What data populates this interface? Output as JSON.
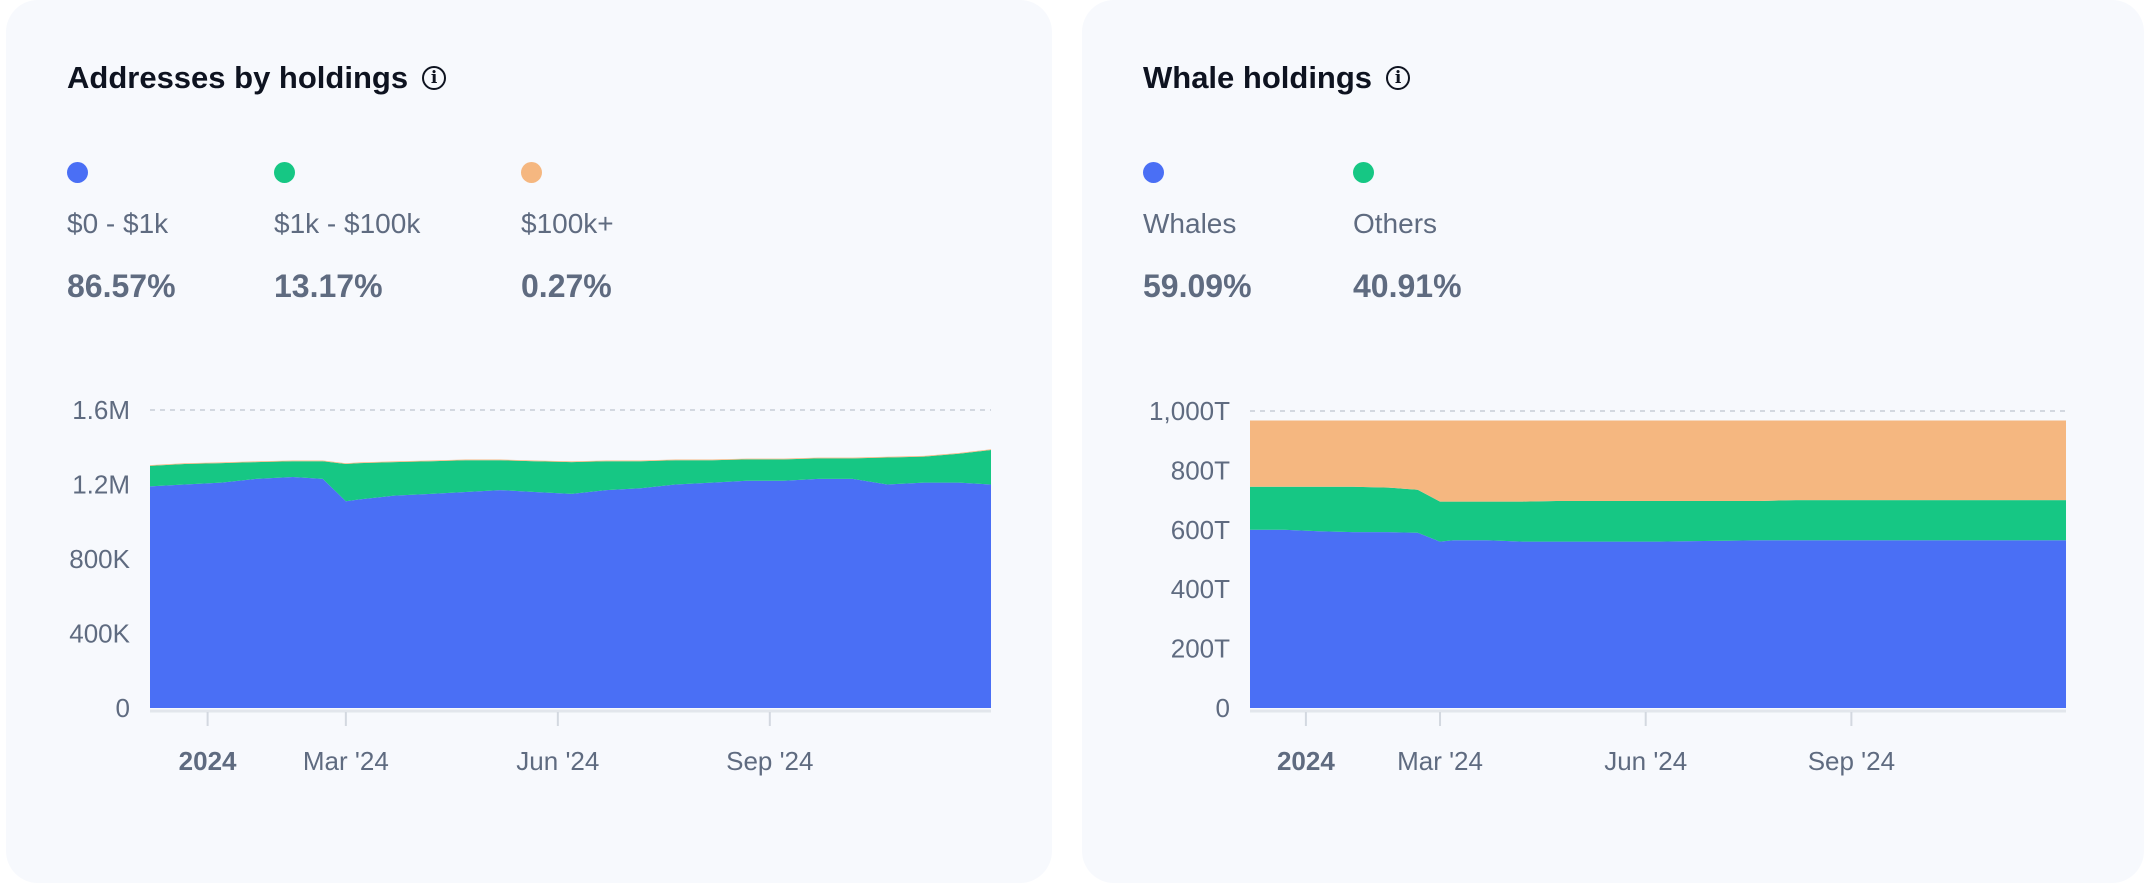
{
  "colors": {
    "blue": "#4A6FF5",
    "green": "#16C784",
    "orange": "#F5B780"
  },
  "chart_data": [
    {
      "type": "area",
      "stacked": true,
      "title": "Addresses by holdings",
      "legend": [
        {
          "label": "$0 - $1k",
          "value": "86.57%",
          "color": "#4A6FF5"
        },
        {
          "label": "$1k - $100k",
          "value": "13.17%",
          "color": "#16C784"
        },
        {
          "label": "$100k+",
          "value": "0.27%",
          "color": "#F5B780"
        }
      ],
      "x": [
        "2023-12-07",
        "2023-12-22",
        "2024-01-07",
        "2024-01-22",
        "2024-02-07",
        "2024-02-20",
        "2024-03-01",
        "2024-03-07",
        "2024-03-22",
        "2024-04-07",
        "2024-04-22",
        "2024-05-07",
        "2024-05-22",
        "2024-06-07",
        "2024-06-22",
        "2024-07-07",
        "2024-07-22",
        "2024-08-07",
        "2024-08-22",
        "2024-09-07",
        "2024-09-22",
        "2024-10-07",
        "2024-10-22",
        "2024-11-07",
        "2024-11-22",
        "2024-12-06"
      ],
      "series": [
        {
          "name": "$0 - $1k",
          "color": "#4A6FF5",
          "values": [
            1190000,
            1200000,
            1210000,
            1230000,
            1240000,
            1230000,
            1110000,
            1120000,
            1140000,
            1150000,
            1160000,
            1170000,
            1160000,
            1150000,
            1170000,
            1180000,
            1200000,
            1210000,
            1220000,
            1220000,
            1230000,
            1230000,
            1200000,
            1210000,
            1210000,
            1200000
          ]
        },
        {
          "name": "$1k - $100k",
          "color": "#16C784",
          "values": [
            110000,
            110000,
            105000,
            90000,
            85000,
            95000,
            200000,
            195000,
            180000,
            175000,
            170000,
            160000,
            165000,
            170000,
            155000,
            145000,
            130000,
            120000,
            115000,
            115000,
            110000,
            110000,
            145000,
            140000,
            155000,
            185000
          ]
        },
        {
          "name": "$100k+",
          "color": "#F5B780",
          "values": [
            4000,
            4000,
            4000,
            4000,
            4000,
            4000,
            4000,
            4000,
            4000,
            4000,
            4000,
            4000,
            4000,
            4000,
            4000,
            4000,
            4000,
            4000,
            4000,
            4000,
            4000,
            4000,
            4000,
            4000,
            4000,
            4000
          ]
        }
      ],
      "ylim": [
        0,
        1600000
      ],
      "yticks": [
        "0",
        "400K",
        "800K",
        "1.2M",
        "1.6M"
      ],
      "ytick_values": [
        0,
        400000,
        800000,
        1200000,
        1600000
      ],
      "xticks": [
        {
          "label": "2024",
          "date": "2024-01-01",
          "bold": true
        },
        {
          "label": "Mar '24",
          "date": "2024-03-01"
        },
        {
          "label": "Jun '24",
          "date": "2024-06-01"
        },
        {
          "label": "Sep '24",
          "date": "2024-09-01"
        }
      ],
      "xrange": [
        "2023-12-07",
        "2024-12-06"
      ]
    },
    {
      "type": "area",
      "stacked": true,
      "title": "Whale holdings",
      "legend": [
        {
          "label": "Whales",
          "value": "59.09%",
          "color": "#4A6FF5"
        },
        {
          "label": "Others",
          "value": "40.91%",
          "color": "#16C784"
        }
      ],
      "x": [
        "2023-12-07",
        "2023-12-22",
        "2024-01-07",
        "2024-01-22",
        "2024-02-07",
        "2024-02-20",
        "2024-03-01",
        "2024-03-07",
        "2024-03-22",
        "2024-04-07",
        "2024-04-22",
        "2024-05-07",
        "2024-05-22",
        "2024-06-07",
        "2024-06-22",
        "2024-07-07",
        "2024-07-22",
        "2024-08-07",
        "2024-08-22",
        "2024-09-07",
        "2024-09-22",
        "2024-10-07",
        "2024-10-22",
        "2024-11-07",
        "2024-11-22",
        "2024-12-06"
      ],
      "series": [
        {
          "name": "Whales",
          "color": "#4A6FF5",
          "values": [
            600,
            600,
            595,
            592,
            592,
            590,
            560,
            565,
            565,
            560,
            560,
            560,
            560,
            560,
            562,
            563,
            565,
            565,
            565,
            565,
            565,
            565,
            565,
            565,
            565,
            565
          ]
        },
        {
          "name": "Others",
          "color": "#16C784",
          "values": [
            145,
            145,
            150,
            153,
            150,
            145,
            135,
            130,
            130,
            135,
            137,
            137,
            137,
            137,
            135,
            134,
            132,
            135,
            135,
            135,
            135,
            135,
            135,
            135,
            135,
            135
          ]
        },
        {
          "name": "",
          "color": "#F5B780",
          "values": [
            223,
            223,
            223,
            223,
            226,
            233,
            273,
            273,
            273,
            273,
            271,
            271,
            271,
            271,
            271,
            271,
            271,
            268,
            268,
            268,
            268,
            268,
            268,
            268,
            268,
            268
          ]
        }
      ],
      "ylim": [
        0,
        1000
      ],
      "yticks": [
        "0",
        "200T",
        "400T",
        "600T",
        "800T",
        "1,000T"
      ],
      "ytick_values": [
        0,
        200,
        400,
        600,
        800,
        1000
      ],
      "xticks": [
        {
          "label": "2024",
          "date": "2024-01-01",
          "bold": true
        },
        {
          "label": "Mar '24",
          "date": "2024-03-01"
        },
        {
          "label": "Jun '24",
          "date": "2024-06-01"
        },
        {
          "label": "Sep '24",
          "date": "2024-09-01"
        }
      ],
      "xrange": [
        "2023-12-07",
        "2024-12-06"
      ]
    }
  ]
}
